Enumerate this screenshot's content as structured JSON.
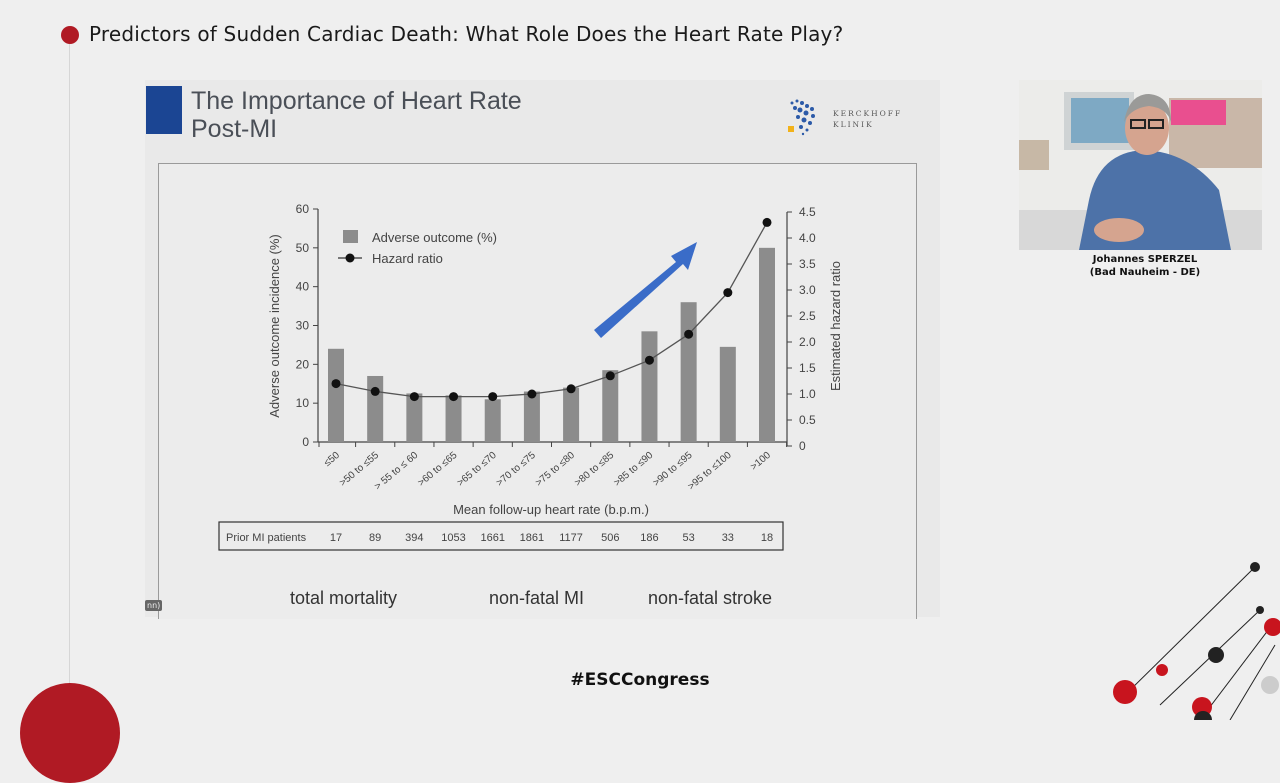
{
  "header": {
    "title": "Predictors of Sudden Cardiac Death: What Role Does the Heart Rate Play?",
    "accent_color": "#b01a24"
  },
  "slide": {
    "title_line1": "The Importance of Heart Rate",
    "title_line2": "Post-MI",
    "logo": {
      "line1": "KERCKHOFF",
      "line2": "KLINIK"
    },
    "subtitles": [
      "total mortality",
      "non-fatal MI",
      "non-fatal stroke"
    ],
    "corner_tag": "nn)"
  },
  "chart_data": {
    "type": "bar",
    "categories": [
      "≤50",
      ">50 to ≤55",
      "> 55 to ≤ 60",
      ">60 to ≤65",
      ">65 to ≤70",
      ">70 to ≤75",
      ">75 to ≤80",
      ">80 to ≤85",
      ">85 to ≤90",
      ">90 to ≤95",
      ">95 to ≤100",
      ">100"
    ],
    "series": [
      {
        "name": "Adverse outcome (%)",
        "type": "bar",
        "axis": "left",
        "color": "#8c8c8c",
        "values": [
          24,
          17,
          12.5,
          12,
          11,
          13,
          14,
          18.5,
          28.5,
          36,
          24.5,
          50
        ]
      },
      {
        "name": "Hazard ratio",
        "type": "line",
        "axis": "right",
        "color": "#111111",
        "values": [
          1.2,
          1.05,
          0.95,
          0.95,
          0.95,
          1.0,
          1.1,
          1.35,
          1.65,
          2.15,
          2.95,
          4.3
        ]
      }
    ],
    "xlabel": "Mean follow-up heart rate (b.p.m.)",
    "ylabel": "Adverse outcome incidence (%)",
    "ylabel_right": "Estimated hazard ratio",
    "ylim": [
      0,
      60
    ],
    "ylim_right": [
      0,
      4.5
    ],
    "yticks": [
      "0",
      "10",
      "20",
      "30",
      "40",
      "50",
      "60"
    ],
    "yticks_right": [
      "0",
      "0.5",
      "1.0",
      "1.5",
      "2.0",
      "2.5",
      "3.0",
      "3.5",
      "4.0",
      "4.5"
    ],
    "legend": "top-left",
    "grid": false,
    "annotation": "blue upward arrow",
    "annotation_color": "#3a6cc8",
    "table": {
      "label": "Prior MI patients",
      "values": [
        "17",
        "89",
        "394",
        "1053",
        "1661",
        "1861",
        "1177",
        "506",
        "186",
        "53",
        "33",
        "18"
      ]
    }
  },
  "presenter": {
    "name": "Johannes SPERZEL",
    "location": "(Bad Nauheim - DE)"
  },
  "footer": {
    "hashtag": "#ESCCongress"
  }
}
